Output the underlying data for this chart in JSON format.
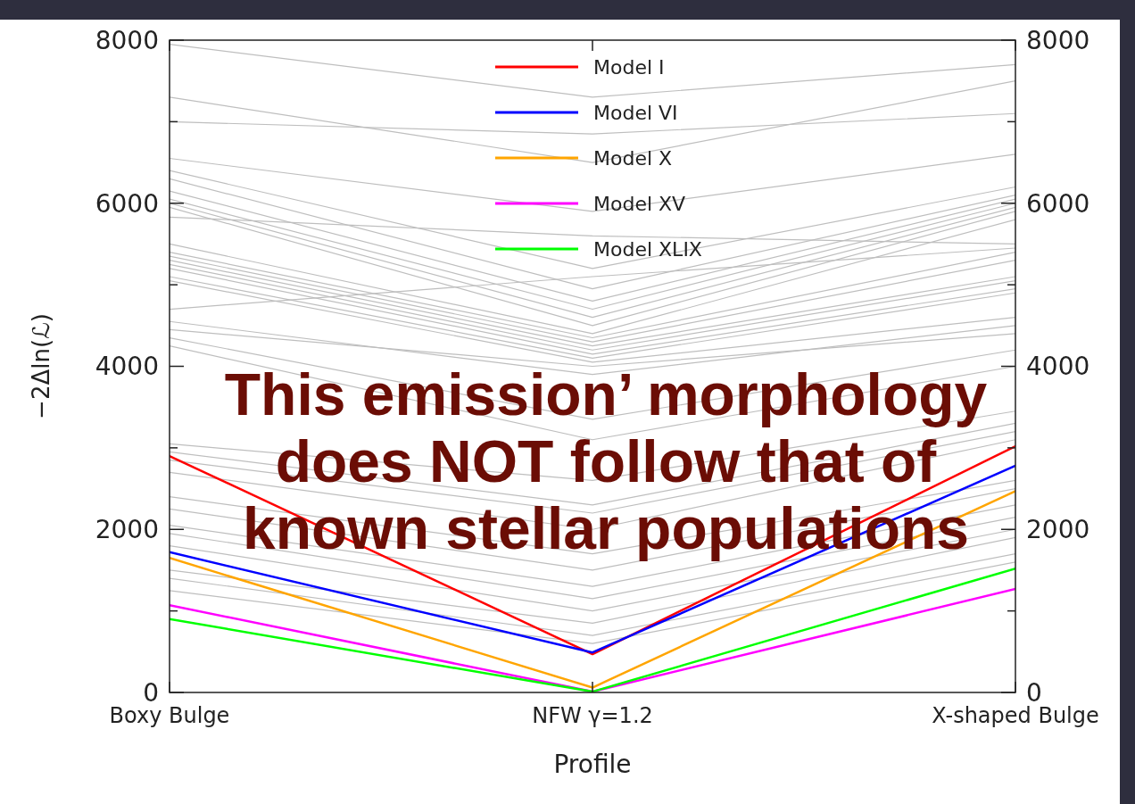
{
  "chart_data": {
    "type": "line",
    "xlabel": "Profile",
    "ylabel": "−2Δln(ℒ)",
    "categories": [
      "Boxy Bulge",
      "NFW γ=1.2",
      "X-shaped Bulge"
    ],
    "ylim": [
      0,
      8000
    ],
    "yticks": [
      0,
      {
        "value": 1000,
        "label": null
      },
      2000,
      {
        "value": 3000,
        "label": null
      },
      4000,
      {
        "value": 5000,
        "label": null
      },
      6000,
      {
        "value": 7000,
        "label": null
      },
      8000
    ],
    "y2lim": [
      0,
      8000
    ],
    "y2ticks": [
      0,
      {
        "value": 1000,
        "label": null
      },
      2000,
      {
        "value": 3000,
        "label": null
      },
      4000,
      {
        "value": 5000,
        "label": null
      },
      6000,
      {
        "value": 7000,
        "label": null
      },
      8000
    ],
    "legend": "top",
    "grid": false,
    "line_style": "solid",
    "annotations": [
      "This emission’ morphology\ndoes NOT follow that of\nknown stellar populations"
    ],
    "series": [
      {
        "color": "#bebebe",
        "values": [
          7950,
          7300,
          7700
        ]
      },
      {
        "color": "#bebebe",
        "values": [
          7300,
          6500,
          7500
        ]
      },
      {
        "color": "#bebebe",
        "values": [
          7000,
          6850,
          7100
        ]
      },
      {
        "color": "#bebebe",
        "values": [
          6550,
          5900,
          6600
        ]
      },
      {
        "color": "#bebebe",
        "values": [
          6400,
          5200,
          6200
        ]
      },
      {
        "color": "#bebebe",
        "values": [
          6300,
          4950,
          6100
        ]
      },
      {
        "color": "#bebebe",
        "values": [
          6150,
          4800,
          6050
        ]
      },
      {
        "color": "#bebebe",
        "values": [
          6050,
          4700,
          6000
        ]
      },
      {
        "color": "#bebebe",
        "values": [
          6000,
          4600,
          5950
        ]
      },
      {
        "color": "#bebebe",
        "values": [
          5950,
          4500,
          5900
        ]
      },
      {
        "color": "#bebebe",
        "values": [
          5830,
          5600,
          5500
        ]
      },
      {
        "color": "#bebebe",
        "values": [
          5500,
          4400,
          5800
        ]
      },
      {
        "color": "#bebebe",
        "values": [
          5400,
          4350,
          5400
        ]
      },
      {
        "color": "#bebebe",
        "values": [
          5350,
          4300,
          5300
        ]
      },
      {
        "color": "#bebebe",
        "values": [
          5300,
          4250,
          5100
        ]
      },
      {
        "color": "#bebebe",
        "values": [
          5250,
          4200,
          5050
        ]
      },
      {
        "color": "#bebebe",
        "values": [
          5200,
          4150,
          4950
        ]
      },
      {
        "color": "#bebebe",
        "values": [
          5100,
          4100,
          4900
        ]
      },
      {
        "color": "#bebebe",
        "values": [
          5050,
          4050,
          4600
        ]
      },
      {
        "color": "#bebebe",
        "values": [
          4700,
          5100,
          5450
        ]
      },
      {
        "color": "#bebebe",
        "values": [
          4550,
          3900,
          4500
        ]
      },
      {
        "color": "#bebebe",
        "values": [
          4450,
          4000,
          4400
        ]
      },
      {
        "color": "#bebebe",
        "values": [
          4350,
          3350,
          4200
        ]
      },
      {
        "color": "#bebebe",
        "values": [
          4250,
          3100,
          4000
        ]
      },
      {
        "color": "#bebebe",
        "values": [
          3050,
          2600,
          3450
        ]
      },
      {
        "color": "#bebebe",
        "values": [
          2950,
          2300,
          3300
        ]
      },
      {
        "color": "#bebebe",
        "values": [
          2850,
          2200,
          3200
        ]
      },
      {
        "color": "#bebebe",
        "values": [
          2700,
          2000,
          3100
        ]
      },
      {
        "color": "#bebebe",
        "values": [
          2400,
          1700,
          2600
        ]
      },
      {
        "color": "#bebebe",
        "values": [
          2250,
          1500,
          2500
        ]
      },
      {
        "color": "#bebebe",
        "values": [
          2050,
          1300,
          2300
        ]
      },
      {
        "color": "#bebebe",
        "values": [
          1950,
          1150,
          2150
        ]
      },
      {
        "color": "#bebebe",
        "values": [
          1800,
          1000,
          2000
        ]
      },
      {
        "color": "#bebebe",
        "values": [
          1500,
          850,
          1900
        ]
      },
      {
        "color": "#bebebe",
        "values": [
          1400,
          700,
          1700
        ]
      },
      {
        "color": "#bebebe",
        "values": [
          1250,
          600,
          1600
        ]
      },
      {
        "name": "Model I",
        "color": "#ff0000",
        "values": [
          2900,
          470,
          3020
        ]
      },
      {
        "name": "Model VI",
        "color": "#0000ff",
        "values": [
          1720,
          490,
          2780
        ]
      },
      {
        "name": "Model X",
        "color": "#ffa500",
        "values": [
          1650,
          60,
          2470
        ]
      },
      {
        "name": "Model XV",
        "color": "#ff00ff",
        "values": [
          1070,
          10,
          1270
        ]
      },
      {
        "name": "Model XLIX",
        "color": "#00ff00",
        "values": [
          900,
          10,
          1520
        ]
      }
    ]
  }
}
